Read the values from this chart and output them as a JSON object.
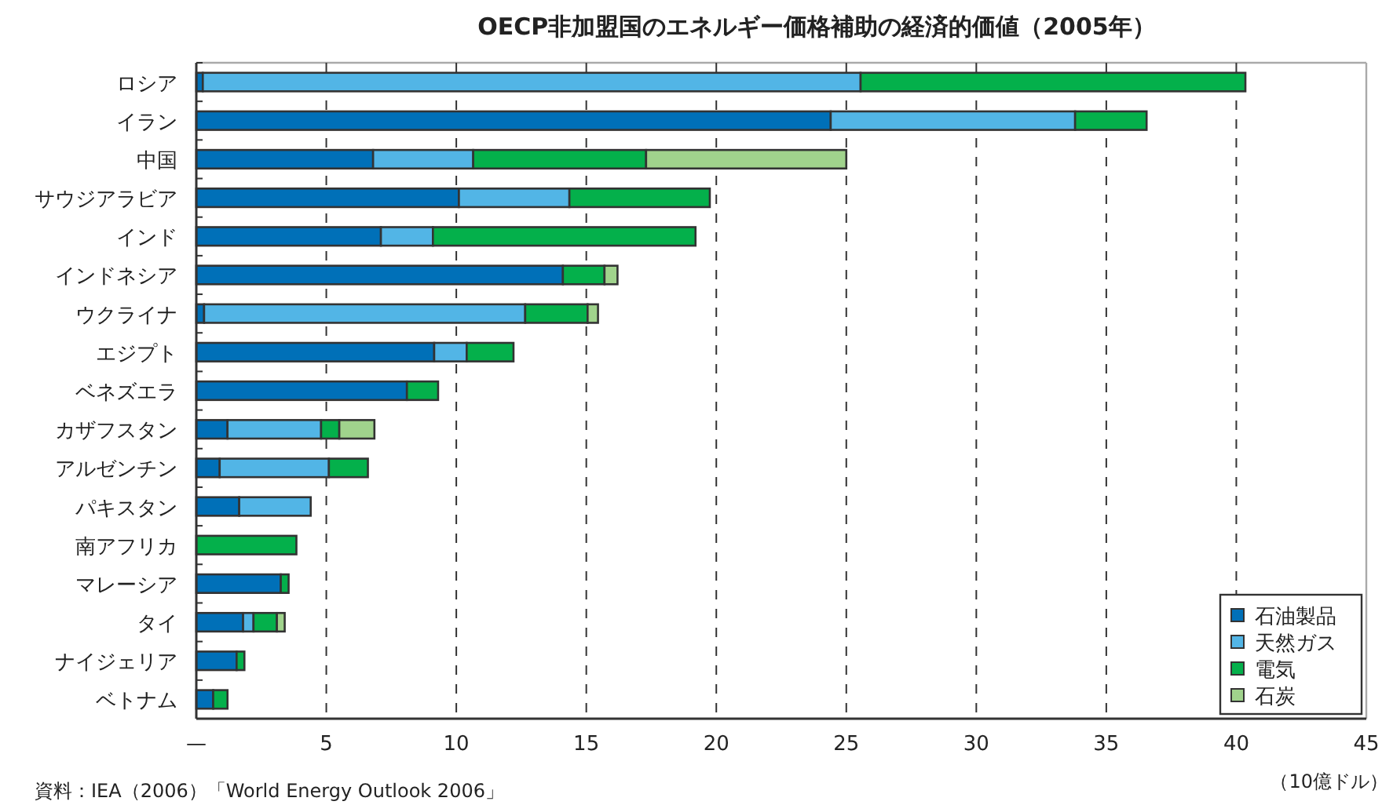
{
  "chart_data": {
    "type": "bar",
    "orientation": "horizontal",
    "stacked": true,
    "title": "OECP非加盟国のエネルギー価格補助の経済的価値（2005年）",
    "xlabel": "（10億ドル）",
    "annotations": [
      "資料：IEA（2006）「World Energy Outlook 2006」"
    ],
    "categories": [
      "ロシア",
      "イラン",
      "中国",
      "サウジアラビア",
      "インド",
      "インドネシア",
      "ウクライナ",
      "エジプト",
      "ベネズエラ",
      "カザフスタン",
      "アルゼンチン",
      "パキスタン",
      "南アフリカ",
      "マレーシア",
      "タイ",
      "ナイジェリア",
      "ベトナム"
    ],
    "series": [
      {
        "name": "石油製品",
        "color": "#0070b8",
        "values": [
          0.25,
          24.4,
          6.8,
          10.1,
          7.1,
          14.1,
          0.3,
          9.15,
          8.1,
          1.2,
          0.9,
          1.65,
          null,
          3.25,
          1.8,
          1.55,
          0.65
        ]
      },
      {
        "name": "天然ガス",
        "color": "#52b5e6",
        "values": [
          25.3,
          9.4,
          3.85,
          4.25,
          2.0,
          null,
          12.35,
          1.25,
          null,
          3.6,
          4.2,
          2.75,
          null,
          null,
          0.4,
          null,
          null
        ]
      },
      {
        "name": "電気",
        "color": "#04b04b",
        "values": [
          14.8,
          2.75,
          6.65,
          5.4,
          10.1,
          1.6,
          2.4,
          1.8,
          1.2,
          0.7,
          1.5,
          null,
          3.85,
          0.3,
          0.9,
          0.3,
          0.55
        ]
      },
      {
        "name": "石炭",
        "color": "#a0d38c",
        "values": [
          null,
          null,
          7.7,
          null,
          null,
          0.5,
          0.4,
          null,
          null,
          1.35,
          null,
          null,
          null,
          null,
          0.3,
          null,
          null
        ]
      }
    ],
    "xlim": [
      0,
      45
    ],
    "xticks": [
      {
        "value": 0,
        "label": "—"
      },
      5,
      10,
      15,
      20,
      25,
      30,
      35,
      40,
      45
    ],
    "grid": "x",
    "legend": "bottom right"
  }
}
